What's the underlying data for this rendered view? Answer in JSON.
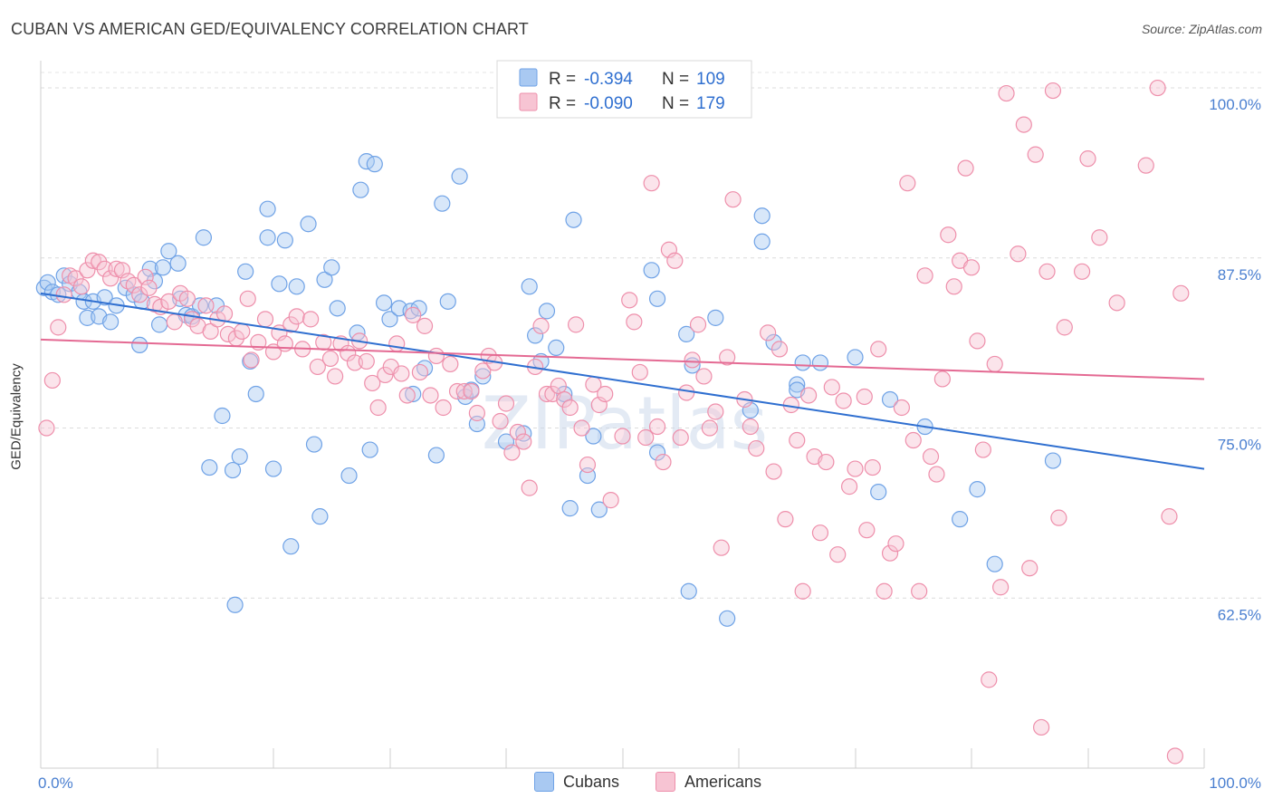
{
  "chart_data": {
    "type": "scatter",
    "title": "CUBAN VS AMERICAN GED/EQUIVALENCY CORRELATION CHART",
    "source": "Source: ZipAtlas.com",
    "ylabel": "GED/Equivalency",
    "xlabel": "",
    "xlim": [
      0,
      100
    ],
    "ylim": [
      50,
      102
    ],
    "x_tick_labels": [
      "0.0%",
      "100.0%"
    ],
    "y_ticks": [
      {
        "value": 100,
        "label": "100.0%"
      },
      {
        "value": 87.5,
        "label": "87.5%"
      },
      {
        "value": 75,
        "label": "75.0%"
      },
      {
        "value": 62.5,
        "label": "62.5%"
      }
    ],
    "grid": true,
    "watermark": "ZIPatlas",
    "legend": [
      {
        "r_label": "R =",
        "r_value": "-0.394",
        "n_label": "N =",
        "n_value": "109"
      },
      {
        "r_label": "R =",
        "r_value": "-0.090",
        "n_label": "N =",
        "n_value": "179"
      }
    ],
    "series": [
      {
        "name": "Cubans",
        "color": "#6fa2e6",
        "fill": "#a9c9f2",
        "line_color": "#2f6fd0",
        "trend": {
          "x0": 0,
          "y0": 84.9,
          "x1": 100,
          "y1": 72.0
        },
        "points": [
          [
            0.3,
            85.3
          ],
          [
            0.6,
            85.7
          ],
          [
            1,
            85
          ],
          [
            1.5,
            84.8
          ],
          [
            2,
            86.2
          ],
          [
            2.5,
            85.6
          ],
          [
            3.3,
            85
          ],
          [
            3.7,
            84.3
          ],
          [
            4,
            83.1
          ],
          [
            4.5,
            84.3
          ],
          [
            5,
            83.2
          ],
          [
            5.5,
            84.6
          ],
          [
            6,
            82.8
          ],
          [
            6.5,
            84
          ],
          [
            7.3,
            85.3
          ],
          [
            8,
            84.8
          ],
          [
            8.5,
            81.1
          ],
          [
            8.7,
            84.3
          ],
          [
            9.4,
            86.7
          ],
          [
            9.8,
            85.8
          ],
          [
            10.2,
            82.6
          ],
          [
            10.5,
            86.8
          ],
          [
            11,
            88
          ],
          [
            11.8,
            87.1
          ],
          [
            12,
            84.5
          ],
          [
            12.5,
            83.3
          ],
          [
            13,
            83.2
          ],
          [
            13.7,
            84
          ],
          [
            14,
            89
          ],
          [
            14.5,
            72.1
          ],
          [
            15.1,
            84
          ],
          [
            15.6,
            75.9
          ],
          [
            16.5,
            71.9
          ],
          [
            16.7,
            62
          ],
          [
            17.1,
            72.9
          ],
          [
            17.6,
            86.5
          ],
          [
            18,
            79.9
          ],
          [
            18.5,
            77.5
          ],
          [
            19.5,
            91.1
          ],
          [
            19.5,
            89
          ],
          [
            20,
            72
          ],
          [
            20.5,
            85.6
          ],
          [
            21,
            88.8
          ],
          [
            21.5,
            66.3
          ],
          [
            22,
            85.4
          ],
          [
            23,
            90
          ],
          [
            23.5,
            73.8
          ],
          [
            24,
            68.5
          ],
          [
            24.4,
            85.9
          ],
          [
            25,
            86.8
          ],
          [
            25.5,
            83.8
          ],
          [
            26.5,
            71.5
          ],
          [
            27.2,
            82
          ],
          [
            27.5,
            92.5
          ],
          [
            28,
            94.6
          ],
          [
            28.3,
            73.4
          ],
          [
            28.7,
            94.4
          ],
          [
            29.5,
            84.2
          ],
          [
            30,
            83
          ],
          [
            30.8,
            83.8
          ],
          [
            31.8,
            83.6
          ],
          [
            32,
            77.5
          ],
          [
            32.5,
            83.8
          ],
          [
            33,
            79.4
          ],
          [
            34,
            73
          ],
          [
            34.5,
            91.5
          ],
          [
            35,
            84.3
          ],
          [
            36,
            93.5
          ],
          [
            36.5,
            77.3
          ],
          [
            37,
            77.8
          ],
          [
            37.5,
            75.3
          ],
          [
            38,
            78.8
          ],
          [
            40,
            74
          ],
          [
            41.5,
            74.6
          ],
          [
            42,
            85.4
          ],
          [
            42.5,
            81.8
          ],
          [
            43,
            79.9
          ],
          [
            43.5,
            83.6
          ],
          [
            44.3,
            80.9
          ],
          [
            45,
            77.5
          ],
          [
            45.5,
            69.1
          ],
          [
            45.8,
            90.3
          ],
          [
            47,
            71.5
          ],
          [
            47.5,
            74.4
          ],
          [
            48,
            69
          ],
          [
            52.5,
            86.6
          ],
          [
            53,
            84.5
          ],
          [
            53,
            73.2
          ],
          [
            55.5,
            81.9
          ],
          [
            55.7,
            63
          ],
          [
            56,
            79.6
          ],
          [
            58,
            83.1
          ],
          [
            59,
            61
          ],
          [
            61,
            76.3
          ],
          [
            62,
            90.6
          ],
          [
            62,
            88.7
          ],
          [
            63,
            81.3
          ],
          [
            65,
            78.2
          ],
          [
            65,
            77.8
          ],
          [
            65.5,
            79.8
          ],
          [
            67,
            79.8
          ],
          [
            70,
            80.2
          ],
          [
            72,
            70.3
          ],
          [
            73,
            77.1
          ],
          [
            76,
            75.1
          ],
          [
            87,
            72.6
          ],
          [
            79,
            68.3
          ],
          [
            80.5,
            70.5
          ],
          [
            82,
            65.0
          ]
        ]
      },
      {
        "name": "Americans",
        "color": "#ee8fab",
        "fill": "#f7c4d3",
        "line_color": "#e46a93",
        "trend": {
          "x0": 0,
          "y0": 81.5,
          "x1": 100,
          "y1": 78.6
        },
        "points": [
          [
            0.5,
            75
          ],
          [
            1,
            78.5
          ],
          [
            1.5,
            82.4
          ],
          [
            2,
            84.8
          ],
          [
            2.5,
            86.2
          ],
          [
            3,
            86
          ],
          [
            3.5,
            85.4
          ],
          [
            4,
            86.6
          ],
          [
            4.5,
            87.3
          ],
          [
            5,
            87.2
          ],
          [
            5.5,
            86.7
          ],
          [
            6,
            86
          ],
          [
            6.5,
            86.7
          ],
          [
            7,
            86.6
          ],
          [
            7.5,
            85.8
          ],
          [
            8,
            85.5
          ],
          [
            8.5,
            84.8
          ],
          [
            9,
            86.1
          ],
          [
            9.3,
            85.3
          ],
          [
            9.8,
            84.1
          ],
          [
            10.3,
            83.9
          ],
          [
            11,
            84.3
          ],
          [
            11.5,
            82.8
          ],
          [
            12,
            84.9
          ],
          [
            12.6,
            84.5
          ],
          [
            13,
            83
          ],
          [
            13.5,
            82.5
          ],
          [
            14.2,
            84
          ],
          [
            14.6,
            82.1
          ],
          [
            15.2,
            83
          ],
          [
            15.8,
            83.4
          ],
          [
            16.1,
            81.9
          ],
          [
            16.8,
            81.6
          ],
          [
            17.3,
            82.1
          ],
          [
            17.8,
            84.5
          ],
          [
            18.1,
            80
          ],
          [
            18.7,
            81.3
          ],
          [
            19.3,
            83
          ],
          [
            20,
            80.6
          ],
          [
            20.5,
            82
          ],
          [
            21,
            81.2
          ],
          [
            21.5,
            82.6
          ],
          [
            22,
            83.2
          ],
          [
            22.5,
            80.8
          ],
          [
            23.2,
            83
          ],
          [
            23.8,
            79.5
          ],
          [
            24.3,
            81.3
          ],
          [
            24.9,
            80.1
          ],
          [
            25.3,
            78.8
          ],
          [
            25.8,
            81.2
          ],
          [
            26.4,
            80.5
          ],
          [
            27,
            79.8
          ],
          [
            27.4,
            81.4
          ],
          [
            28,
            79.9
          ],
          [
            28.5,
            78.3
          ],
          [
            29,
            76.5
          ],
          [
            29.6,
            78.9
          ],
          [
            30.1,
            79.5
          ],
          [
            30.6,
            81.2
          ],
          [
            31,
            79
          ],
          [
            31.5,
            77.4
          ],
          [
            32,
            83.3
          ],
          [
            32.6,
            79.1
          ],
          [
            33,
            82.5
          ],
          [
            33.5,
            77.4
          ],
          [
            34,
            80.3
          ],
          [
            34.6,
            76.5
          ],
          [
            35.2,
            79.7
          ],
          [
            35.8,
            77.7
          ],
          [
            36.4,
            77.7
          ],
          [
            37,
            77.7
          ],
          [
            37.5,
            76.1
          ],
          [
            38,
            79.2
          ],
          [
            38.5,
            80.3
          ],
          [
            39,
            79.8
          ],
          [
            39.5,
            75.5
          ],
          [
            40,
            76.8
          ],
          [
            40.5,
            73.2
          ],
          [
            41,
            74.7
          ],
          [
            41.5,
            74.0
          ],
          [
            42,
            70.6
          ],
          [
            42.5,
            79.5
          ],
          [
            43,
            82.5
          ],
          [
            43.5,
            77.5
          ],
          [
            44,
            77.5
          ],
          [
            44.5,
            78.1
          ],
          [
            45,
            77.1
          ],
          [
            45.5,
            76.5
          ],
          [
            46,
            82.6
          ],
          [
            46.5,
            75.0
          ],
          [
            47,
            72.3
          ],
          [
            47.5,
            78.2
          ],
          [
            48,
            76.7
          ],
          [
            48.5,
            77.5
          ],
          [
            49,
            69.7
          ],
          [
            50,
            74.4
          ],
          [
            50.6,
            84.4
          ],
          [
            51,
            82.8
          ],
          [
            51.5,
            79.1
          ],
          [
            52,
            74.3
          ],
          [
            52.5,
            93
          ],
          [
            53,
            75.1
          ],
          [
            53.5,
            72.5
          ],
          [
            54,
            88.1
          ],
          [
            54.5,
            87.3
          ],
          [
            55,
            74.3
          ],
          [
            55.5,
            77.6
          ],
          [
            56,
            80
          ],
          [
            56.5,
            82.6
          ],
          [
            57,
            78.8
          ],
          [
            57.5,
            75
          ],
          [
            58,
            76.2
          ],
          [
            58.5,
            66.2
          ],
          [
            59,
            80.2
          ],
          [
            59.5,
            91.8
          ],
          [
            60.5,
            77.1
          ],
          [
            61,
            75.1
          ],
          [
            61.5,
            73.5
          ],
          [
            62.5,
            82
          ],
          [
            63,
            71.8
          ],
          [
            63.5,
            80.8
          ],
          [
            64,
            68.3
          ],
          [
            64.5,
            76.7
          ],
          [
            65,
            74.1
          ],
          [
            65.5,
            63
          ],
          [
            66,
            77.4
          ],
          [
            66.5,
            72.9
          ],
          [
            67,
            67.3
          ],
          [
            67.5,
            72.5
          ],
          [
            68,
            78
          ],
          [
            68.5,
            65.7
          ],
          [
            69,
            77
          ],
          [
            69.5,
            70.7
          ],
          [
            70,
            72
          ],
          [
            70.8,
            77.3
          ],
          [
            71,
            67.5
          ],
          [
            71.5,
            72.1
          ],
          [
            72,
            80.8
          ],
          [
            72.5,
            63
          ],
          [
            73,
            65.8
          ],
          [
            73.5,
            66.5
          ],
          [
            74,
            76.5
          ],
          [
            74.5,
            93
          ],
          [
            75,
            74.1
          ],
          [
            75.5,
            63
          ],
          [
            76,
            86.2
          ],
          [
            76.5,
            72.9
          ],
          [
            77,
            71.6
          ],
          [
            77.5,
            78.6
          ],
          [
            78,
            89.2
          ],
          [
            78.5,
            85.4
          ],
          [
            79,
            87.3
          ],
          [
            79.5,
            94.1
          ],
          [
            80,
            86.8
          ],
          [
            80.5,
            81.4
          ],
          [
            81,
            73.4
          ],
          [
            81.5,
            56.5
          ],
          [
            82,
            79.7
          ],
          [
            82.5,
            63.3
          ],
          [
            83,
            99.6
          ],
          [
            84,
            87.8
          ],
          [
            84.5,
            97.3
          ],
          [
            85,
            64.7
          ],
          [
            85.5,
            95.1
          ],
          [
            86,
            53
          ],
          [
            86.5,
            86.5
          ],
          [
            87,
            99.8
          ],
          [
            87.5,
            68.4
          ],
          [
            88,
            82.4
          ],
          [
            89.5,
            86.5
          ],
          [
            90,
            94.8
          ],
          [
            91,
            89
          ],
          [
            92.5,
            84.2
          ],
          [
            95,
            94.3
          ],
          [
            96,
            100
          ],
          [
            97,
            68.5
          ],
          [
            97.5,
            50.9
          ],
          [
            98,
            84.9
          ]
        ]
      }
    ]
  }
}
